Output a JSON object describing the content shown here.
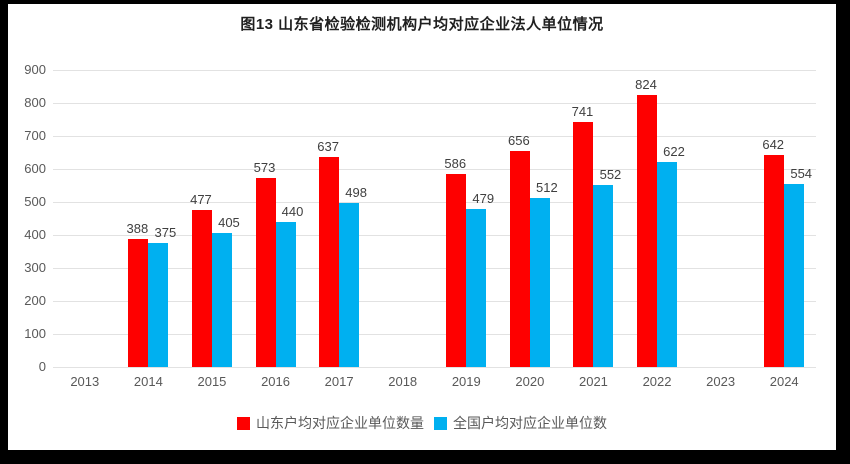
{
  "chart_data": {
    "type": "bar",
    "title": "图13 山东省检验检测机构户均对应企业法人单位情况",
    "categories": [
      "2013",
      "2014",
      "2015",
      "2016",
      "2017",
      "2018",
      "2019",
      "2020",
      "2021",
      "2022",
      "2023",
      "2024"
    ],
    "series": [
      {
        "name": "山东户均对应企业单位数量",
        "color": "#FE0000",
        "values": [
          null,
          388,
          477,
          573,
          637,
          null,
          586,
          656,
          741,
          824,
          null,
          642
        ]
      },
      {
        "name": "全国户均对应企业单位数",
        "color": "#00B0F0",
        "values": [
          null,
          375,
          405,
          440,
          498,
          null,
          479,
          512,
          552,
          622,
          null,
          554
        ]
      }
    ],
    "xlabel": "",
    "ylabel": "",
    "ylim": [
      0,
      900
    ],
    "ytick_step": 100,
    "grid": true,
    "legend_position": "bottom"
  },
  "colors": {
    "frame": "#000000",
    "background": "#FFFFFF",
    "gridline": "#E2E2E2",
    "axis_text": "#595959",
    "data_label_text": "#3F3F3F",
    "title_text": "#1F1F1F"
  }
}
